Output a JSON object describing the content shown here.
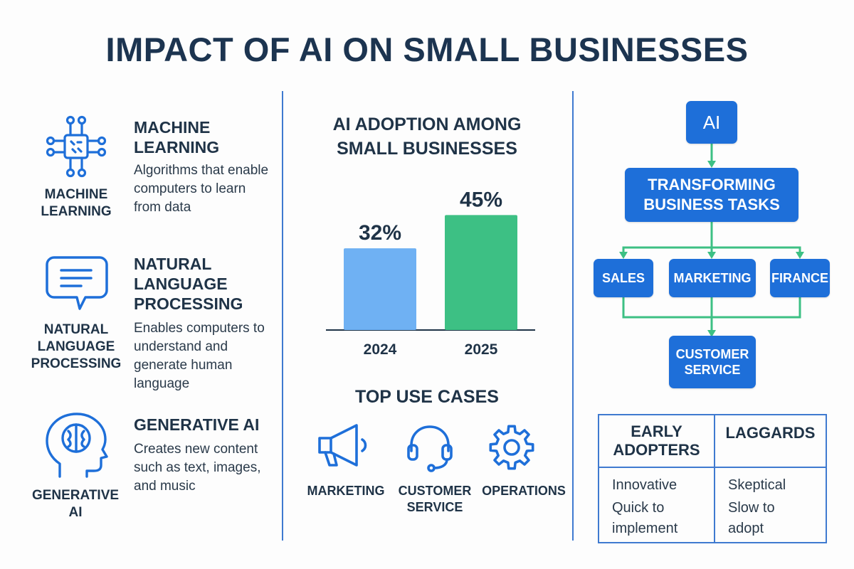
{
  "title": "IMPACT OF AI ON SMALL BUSINESSES",
  "colors": {
    "primary_blue": "#1e6fd9",
    "dark_text": "#1c3450",
    "bar_2024": "#6fb1f3",
    "bar_2025": "#3dc084",
    "flow_green": "#3dc084",
    "divider": "#3f7ad0"
  },
  "left": {
    "features": [
      {
        "icon": "circuit-chip-icon",
        "icon_label": "MACHINE LEARNING",
        "title": "MACHINE LEARNING",
        "description": "Algorithms that enable computers to learn from data"
      },
      {
        "icon": "chat-bubble-icon",
        "icon_label": "NATURAL LANGUAGE PROCESSING",
        "title": "NATURAL LANGUAGE PROCESSING",
        "description": "Enables computers to understand and generate human language"
      },
      {
        "icon": "head-brain-icon",
        "icon_label": "GENERATIVE AI",
        "title": "GENERATIVE AI",
        "description": "Creates new content such as text, images, and music"
      }
    ]
  },
  "chart_data": {
    "type": "bar",
    "title": "AI ADOPTION AMONG SMALL BUSINESSES",
    "categories": [
      "2024",
      "2025"
    ],
    "values": [
      32,
      45
    ],
    "value_labels": [
      "32%",
      "45%"
    ],
    "ylim": [
      0,
      50
    ],
    "xlabel": "",
    "ylabel": "",
    "grid": false
  },
  "use_cases": {
    "title": "TOP USE CASES",
    "items": [
      {
        "icon": "megaphone-icon",
        "label": "MARKETING"
      },
      {
        "icon": "headset-icon",
        "label": "CUSTOMER SERVICE"
      },
      {
        "icon": "gear-icon",
        "label": "OPERATIONS"
      }
    ]
  },
  "flow": {
    "top": "AI",
    "middle": "TRANSFORMING BUSINESS TASKS",
    "branches": [
      "SALES",
      "MARKETING",
      "FIRANCE"
    ],
    "bottom": "CUSTOMER SERVICE"
  },
  "comparison": {
    "columns": [
      {
        "header": "EARLY ADOPTERS",
        "items": [
          "Innovative",
          "Quick to implement"
        ]
      },
      {
        "header": "LAGGARDS",
        "items": [
          "Skeptical",
          "Slow to adopt"
        ]
      }
    ]
  }
}
